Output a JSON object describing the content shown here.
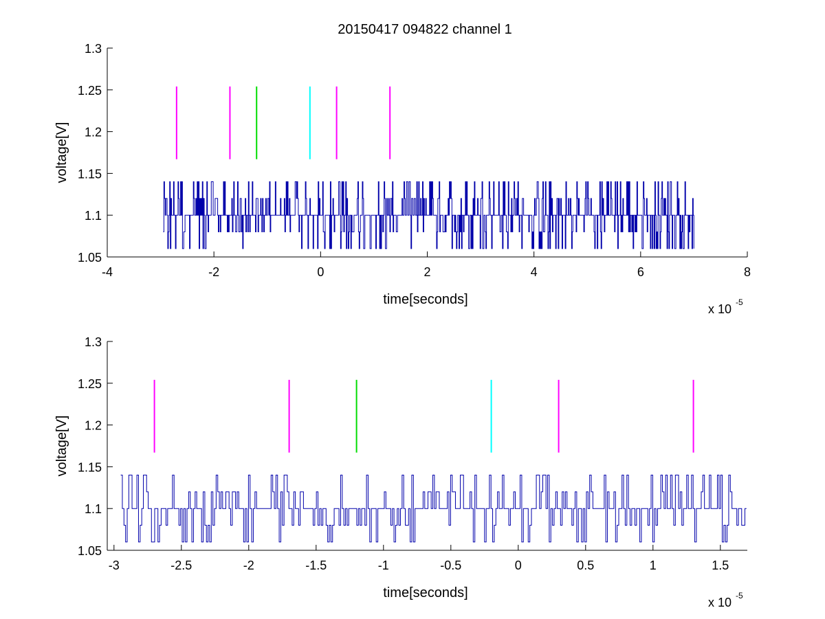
{
  "figure": {
    "title": "20150417 094822 channel 1"
  },
  "colors": {
    "trace": "#0000aa",
    "magenta": "#ff00ff",
    "green": "#00dd00",
    "cyan": "#00ffff",
    "axes": "#000000"
  },
  "chart_data": [
    {
      "type": "line",
      "title": "20150417 094822 channel 1",
      "xlabel": "time[seconds]",
      "ylabel": "voltage[V]",
      "x_multiplier": "x 10",
      "x_multiplier_exp": "-5",
      "xlim": [
        -4,
        8
      ],
      "ylim": [
        1.05,
        1.3
      ],
      "x_ticks": [
        -4,
        -2,
        0,
        2,
        4,
        6,
        8
      ],
      "x_tick_labels": [
        "-4",
        "-2",
        "0",
        "2",
        "4",
        "6",
        "8"
      ],
      "y_ticks": [
        1.05,
        1.1,
        1.15,
        1.2,
        1.25,
        1.3
      ],
      "y_tick_labels": [
        "1.05",
        "1.1",
        "1.15",
        "1.2",
        "1.25",
        "1.3"
      ],
      "grid": false,
      "series": [
        {
          "x_range": [
            -2.95,
            7.0
          ],
          "levels": [
            1.06,
            1.08,
            1.1,
            1.12,
            1.14
          ],
          "baseline": 1.1,
          "color": "trace"
        }
      ],
      "markers": [
        {
          "x": -2.7,
          "y_range": [
            1.167,
            1.254
          ],
          "color": "magenta"
        },
        {
          "x": -1.7,
          "y_range": [
            1.167,
            1.254
          ],
          "color": "magenta"
        },
        {
          "x": -1.2,
          "y_range": [
            1.167,
            1.254
          ],
          "color": "green"
        },
        {
          "x": -0.2,
          "y_range": [
            1.167,
            1.254
          ],
          "color": "cyan"
        },
        {
          "x": 0.3,
          "y_range": [
            1.167,
            1.254
          ],
          "color": "magenta"
        },
        {
          "x": 1.3,
          "y_range": [
            1.167,
            1.254
          ],
          "color": "magenta"
        }
      ]
    },
    {
      "type": "line",
      "xlabel": "time[seconds]",
      "ylabel": "voltage[V]",
      "x_multiplier": "x 10",
      "x_multiplier_exp": "-5",
      "xlim": [
        -3.05,
        1.7
      ],
      "ylim": [
        1.05,
        1.3
      ],
      "x_ticks": [
        -3,
        -2.5,
        -2,
        -1.5,
        -1,
        -0.5,
        0,
        0.5,
        1,
        1.5
      ],
      "x_tick_labels": [
        "-3",
        "-2.5",
        "-2",
        "-1.5",
        "-1",
        "-0.5",
        "0",
        "0.5",
        "1",
        "1.5"
      ],
      "y_ticks": [
        1.05,
        1.1,
        1.15,
        1.2,
        1.25,
        1.3
      ],
      "y_tick_labels": [
        "1.05",
        "1.1",
        "1.15",
        "1.2",
        "1.25",
        "1.3"
      ],
      "grid": false,
      "series": [
        {
          "x_range": [
            -2.95,
            1.7
          ],
          "levels": [
            1.06,
            1.08,
            1.1,
            1.12,
            1.14
          ],
          "baseline": 1.1,
          "color": "trace"
        }
      ],
      "markers": [
        {
          "x": -2.7,
          "y_range": [
            1.167,
            1.254
          ],
          "color": "magenta"
        },
        {
          "x": -1.7,
          "y_range": [
            1.167,
            1.254
          ],
          "color": "magenta"
        },
        {
          "x": -1.2,
          "y_range": [
            1.167,
            1.254
          ],
          "color": "green"
        },
        {
          "x": -0.2,
          "y_range": [
            1.167,
            1.254
          ],
          "color": "cyan"
        },
        {
          "x": 0.3,
          "y_range": [
            1.167,
            1.254
          ],
          "color": "magenta"
        },
        {
          "x": 1.3,
          "y_range": [
            1.167,
            1.254
          ],
          "color": "magenta"
        }
      ]
    }
  ]
}
